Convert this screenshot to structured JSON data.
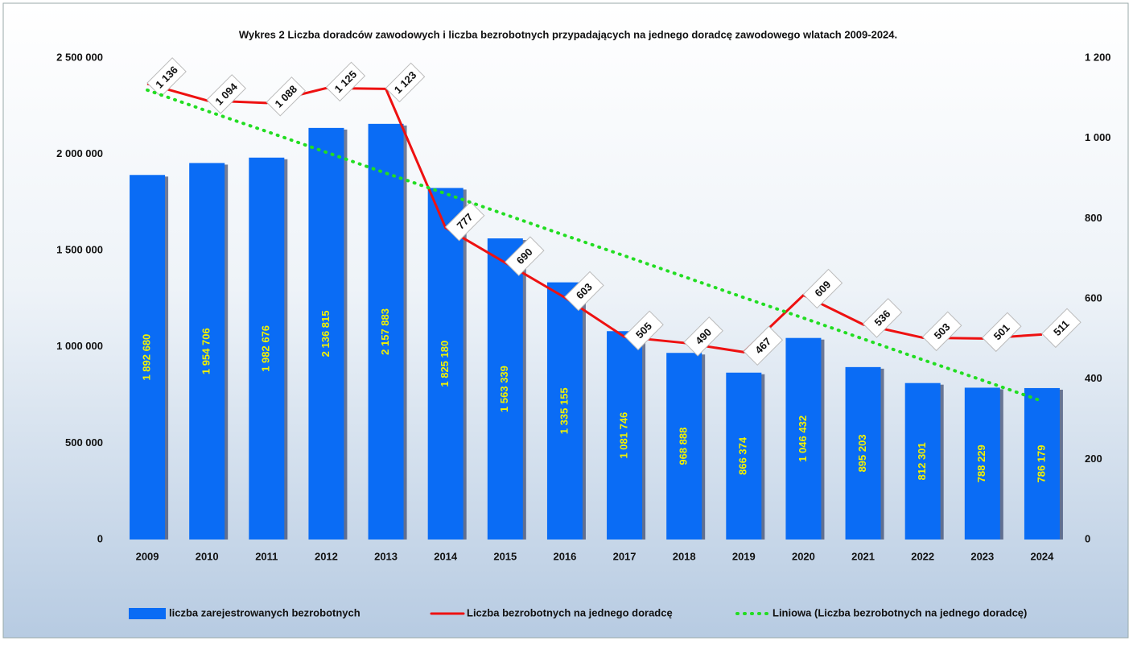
{
  "chart_data": {
    "type": "bar",
    "title": "Wykres 2     Liczba doradców zawodowych i liczba bezrobotnych przypadających na jednego doradcę zawodowego wlatach 2009-2024.",
    "categories": [
      "2009",
      "2010",
      "2011",
      "2012",
      "2013",
      "2014",
      "2015",
      "2016",
      "2017",
      "2018",
      "2019",
      "2020",
      "2021",
      "2022",
      "2023",
      "2024"
    ],
    "series": [
      {
        "name": "liczba zarejestrowanych bezrobotnych",
        "type": "bar",
        "color": "#0a6cf5",
        "values": [
          1892680,
          1954706,
          1982676,
          2136815,
          2157883,
          1825180,
          1563339,
          1335155,
          1081746,
          968888,
          866374,
          1046432,
          895203,
          812301,
          788229,
          786179
        ],
        "value_labels": [
          "1 892 680",
          "1 954 706",
          "1 982 676",
          "2 136 815",
          "2 157 883",
          "1 825 180",
          "1 563 339",
          "1 335 155",
          "1 081 746",
          "968 888",
          "866 374",
          "1 046 432",
          "895 203",
          "812 301",
          "788 229",
          "786 179"
        ]
      },
      {
        "name": "Liczba bezrobotnych na jednego doradcę",
        "type": "line",
        "axis": "y2",
        "color": "#ee1111",
        "values": [
          1136,
          1094,
          1088,
          1125,
          1123,
          777,
          690,
          603,
          505,
          490,
          467,
          609,
          536,
          503,
          501,
          511
        ],
        "value_labels": [
          "1 136",
          "1 094",
          "1 088",
          "1 125",
          "1 123",
          "777",
          "690",
          "603",
          "505",
          "490",
          "467",
          "609",
          "536",
          "503",
          "501",
          "511"
        ]
      },
      {
        "name": "Liniowa (Liczba bezrobotnych na jednego doradcę)",
        "type": "trend",
        "axis": "y2",
        "color": "#22dd22",
        "values": [
          1120,
          1068,
          1017,
          965,
          913,
          862,
          810,
          758,
          707,
          655,
          603,
          552,
          500,
          448,
          397,
          345
        ]
      }
    ],
    "ylim": [
      0,
      2500000
    ],
    "yticks": [
      0,
      {
        "value": 500000,
        "label": "500 000"
      },
      {
        "value": 1000000,
        "label": "1 000 000"
      },
      {
        "value": 1500000,
        "label": "1 500 000"
      },
      {
        "value": 2000000,
        "label": "2 000 000"
      },
      {
        "value": 2500000,
        "label": "2 500 000"
      }
    ],
    "y2lim": [
      0,
      1200
    ],
    "y2ticks": [
      0,
      200,
      400,
      600,
      800,
      {
        "value": 1000,
        "label": "1 000"
      },
      {
        "value": 1200,
        "label": "1 200"
      }
    ],
    "legend": "bottom"
  }
}
